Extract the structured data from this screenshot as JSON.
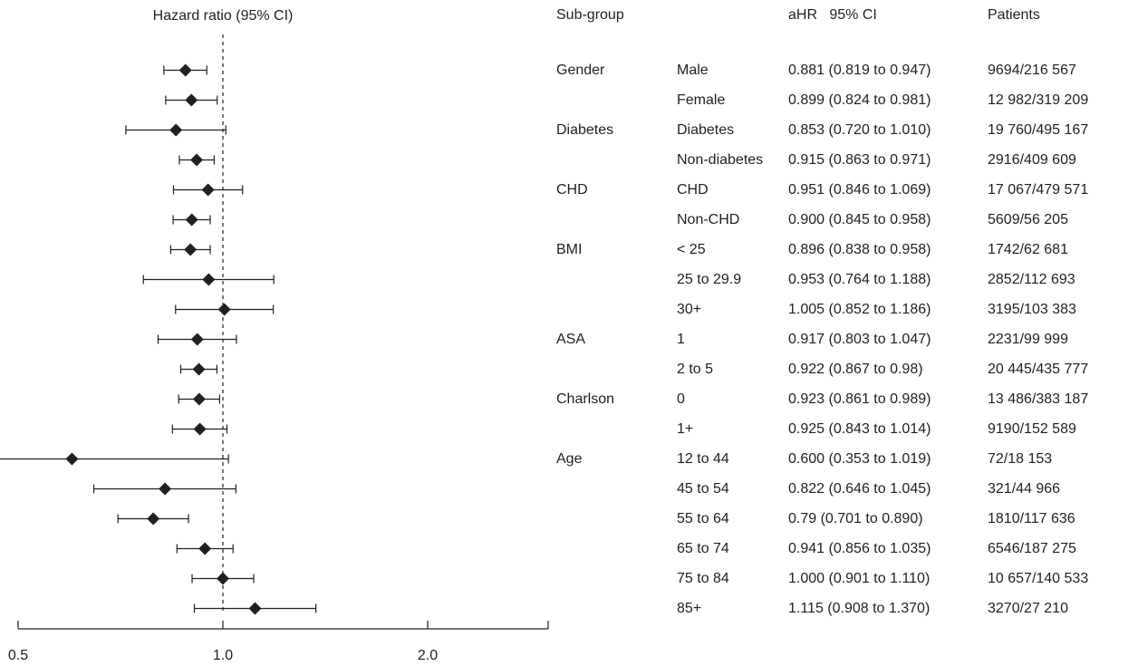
{
  "headers": {
    "plot_title": "Hazard ratio (95% CI)",
    "subgroup": "Sub-group",
    "ahr_ci": "aHR   95% CI",
    "patients": "Patients"
  },
  "rows": [
    {
      "group": "Gender",
      "level": "Male",
      "ahr": "0.881 (0.819 to 0.947)",
      "patients": "9694/216 567"
    },
    {
      "group": "",
      "level": "Female",
      "ahr": "0.899 (0.824 to 0.981)",
      "patients": "12 982/319 209"
    },
    {
      "group": "Diabetes",
      "level": "Diabetes",
      "ahr": "0.853 (0.720 to 1.010)",
      "patients": "19 760/495 167"
    },
    {
      "group": "",
      "level": "Non-diabetes",
      "ahr": "0.915 (0.863 to 0.971)",
      "patients": "2916/409 609"
    },
    {
      "group": "CHD",
      "level": "CHD",
      "ahr": "0.951 (0.846 to 1.069)",
      "patients": "17 067/479 571"
    },
    {
      "group": "",
      "level": "Non-CHD",
      "ahr": "0.900 (0.845 to 0.958)",
      "patients": "5609/56 205"
    },
    {
      "group": "BMI",
      "level": "< 25",
      "ahr": "0.896 (0.838 to 0.958)",
      "patients": "1742/62 681"
    },
    {
      "group": "",
      "level": "25 to 29.9",
      "ahr": "0.953 (0.764 to 1.188)",
      "patients": "2852/112 693"
    },
    {
      "group": "",
      "level": "30+",
      "ahr": "1.005 (0.852 to 1.186)",
      "patients": "3195/103 383"
    },
    {
      "group": "ASA",
      "level": "1",
      "ahr": "0.917 (0.803 to 1.047)",
      "patients": "2231/99 999"
    },
    {
      "group": "",
      "level": "2 to 5",
      "ahr": "0.922 (0.867 to 0.98)",
      "patients": "20 445/435 777"
    },
    {
      "group": "Charlson",
      "level": "0",
      "ahr": "0.923 (0.861 to 0.989)",
      "patients": "13 486/383 187"
    },
    {
      "group": "",
      "level": "1+",
      "ahr": "0.925 (0.843 to 1.014)",
      "patients": "9190/152 589"
    },
    {
      "group": "Age",
      "level": "12 to 44",
      "ahr": "0.600 (0.353 to 1.019)",
      "patients": "72/18 153"
    },
    {
      "group": "",
      "level": "45 to 54",
      "ahr": "0.822 (0.646 to 1.045)",
      "patients": "321/44 966"
    },
    {
      "group": "",
      "level": "55 to 64",
      "ahr": "0.79 (0.701 to 0.890)",
      "patients": "1810/117 636"
    },
    {
      "group": "",
      "level": "65 to 74",
      "ahr": "0.941 (0.856 to 1.035)",
      "patients": "6546/187 275"
    },
    {
      "group": "",
      "level": "75 to 84",
      "ahr": "1.000 (0.901 to 1.110)",
      "patients": "10 657/140 533"
    },
    {
      "group": "",
      "level": "85+",
      "ahr": "1.115 (0.908 to 1.370)",
      "patients": "3270/27 210"
    }
  ],
  "chart_data": {
    "type": "forest",
    "xlabel": "Hazard ratio (95% CI)",
    "x_axis": {
      "ticks": [
        0.5,
        1.0,
        2.0
      ],
      "tick_labels": [
        "0.5",
        "1.0",
        "2.0"
      ],
      "reference_line": 1.0,
      "scale": "log"
    },
    "grid": false,
    "marker": "diamond",
    "colors": {
      "marker": "#231f20",
      "line": "#231f20",
      "reference": "#231f20"
    },
    "points": [
      {
        "hr": 0.881,
        "lo": 0.819,
        "hi": 0.947
      },
      {
        "hr": 0.899,
        "lo": 0.824,
        "hi": 0.981
      },
      {
        "hr": 0.853,
        "lo": 0.72,
        "hi": 1.01
      },
      {
        "hr": 0.915,
        "lo": 0.863,
        "hi": 0.971
      },
      {
        "hr": 0.951,
        "lo": 0.846,
        "hi": 1.069
      },
      {
        "hr": 0.9,
        "lo": 0.845,
        "hi": 0.958
      },
      {
        "hr": 0.896,
        "lo": 0.838,
        "hi": 0.958
      },
      {
        "hr": 0.953,
        "lo": 0.764,
        "hi": 1.188
      },
      {
        "hr": 1.005,
        "lo": 0.852,
        "hi": 1.186
      },
      {
        "hr": 0.917,
        "lo": 0.803,
        "hi": 1.047
      },
      {
        "hr": 0.922,
        "lo": 0.867,
        "hi": 0.98
      },
      {
        "hr": 0.923,
        "lo": 0.861,
        "hi": 0.989
      },
      {
        "hr": 0.925,
        "lo": 0.843,
        "hi": 1.014
      },
      {
        "hr": 0.6,
        "lo": 0.353,
        "hi": 1.019
      },
      {
        "hr": 0.822,
        "lo": 0.646,
        "hi": 1.045
      },
      {
        "hr": 0.79,
        "lo": 0.701,
        "hi": 0.89
      },
      {
        "hr": 0.941,
        "lo": 0.856,
        "hi": 1.035
      },
      {
        "hr": 1.0,
        "lo": 0.901,
        "hi": 1.11
      },
      {
        "hr": 1.115,
        "lo": 0.908,
        "hi": 1.37
      }
    ]
  }
}
